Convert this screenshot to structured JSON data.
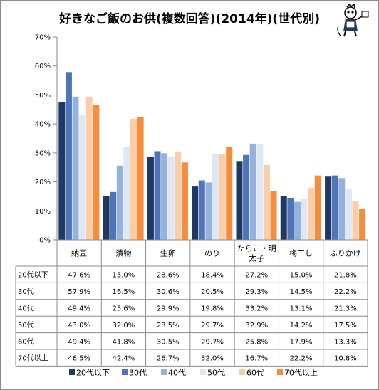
{
  "chart_data": {
    "type": "bar",
    "title": "好きなご飯のお供(複数回答)(2014年)(世代別)",
    "ylim": [
      0,
      70
    ],
    "yticks": [
      "0%",
      "10%",
      "20%",
      "30%",
      "40%",
      "50%",
      "60%",
      "70%"
    ],
    "categories": [
      "納豆",
      "漬物",
      "生卵",
      "のり",
      "たらこ・明太子",
      "梅干し",
      "ふりかけ"
    ],
    "category_lines": [
      [
        "納豆"
      ],
      [
        "漬物"
      ],
      [
        "生卵"
      ],
      [
        "のり"
      ],
      [
        "たらこ・明",
        "太子"
      ],
      [
        "梅干し"
      ],
      [
        "ふりかけ"
      ]
    ],
    "legend_position": "bottom",
    "grid": false,
    "series": [
      {
        "name": "20代以下",
        "color": "#1f3864",
        "values": [
          47.6,
          15.0,
          28.6,
          18.4,
          27.2,
          15.0,
          21.8
        ],
        "labels": [
          "47.6%",
          "15.0%",
          "28.6%",
          "18.4%",
          "27.2%",
          "15.0%",
          "21.8%"
        ]
      },
      {
        "name": "30代",
        "color": "#4f75b8",
        "values": [
          57.9,
          16.5,
          30.6,
          20.5,
          29.3,
          14.5,
          22.2
        ],
        "labels": [
          "57.9%",
          "16.5%",
          "30.6%",
          "20.5%",
          "29.3%",
          "14.5%",
          "22.2%"
        ]
      },
      {
        "name": "40代",
        "color": "#95b2de",
        "values": [
          49.4,
          25.6,
          29.9,
          19.8,
          33.2,
          13.1,
          21.3
        ],
        "labels": [
          "49.4%",
          "25.6%",
          "29.9%",
          "19.8%",
          "33.2%",
          "13.1%",
          "21.3%"
        ]
      },
      {
        "name": "50代",
        "color": "#dfe7f4",
        "values": [
          43.0,
          32.0,
          28.5,
          29.7,
          32.9,
          14.2,
          17.5
        ],
        "labels": [
          "43.0%",
          "32.0%",
          "28.5%",
          "29.7%",
          "32.9%",
          "14.2%",
          "17.5%"
        ]
      },
      {
        "name": "60代",
        "color": "#fbcda6",
        "values": [
          49.4,
          41.8,
          30.5,
          29.7,
          25.8,
          17.9,
          13.3
        ],
        "labels": [
          "49.4%",
          "41.8%",
          "30.5%",
          "29.7%",
          "25.8%",
          "17.9%",
          "13.3%"
        ]
      },
      {
        "name": "70代以上",
        "color": "#f78c3c",
        "values": [
          46.5,
          42.4,
          26.7,
          32.0,
          16.7,
          22.2,
          10.8
        ],
        "labels": [
          "46.5%",
          "42.4%",
          "26.7%",
          "32.0%",
          "16.7%",
          "22.2%",
          "10.8%"
        ]
      }
    ]
  }
}
